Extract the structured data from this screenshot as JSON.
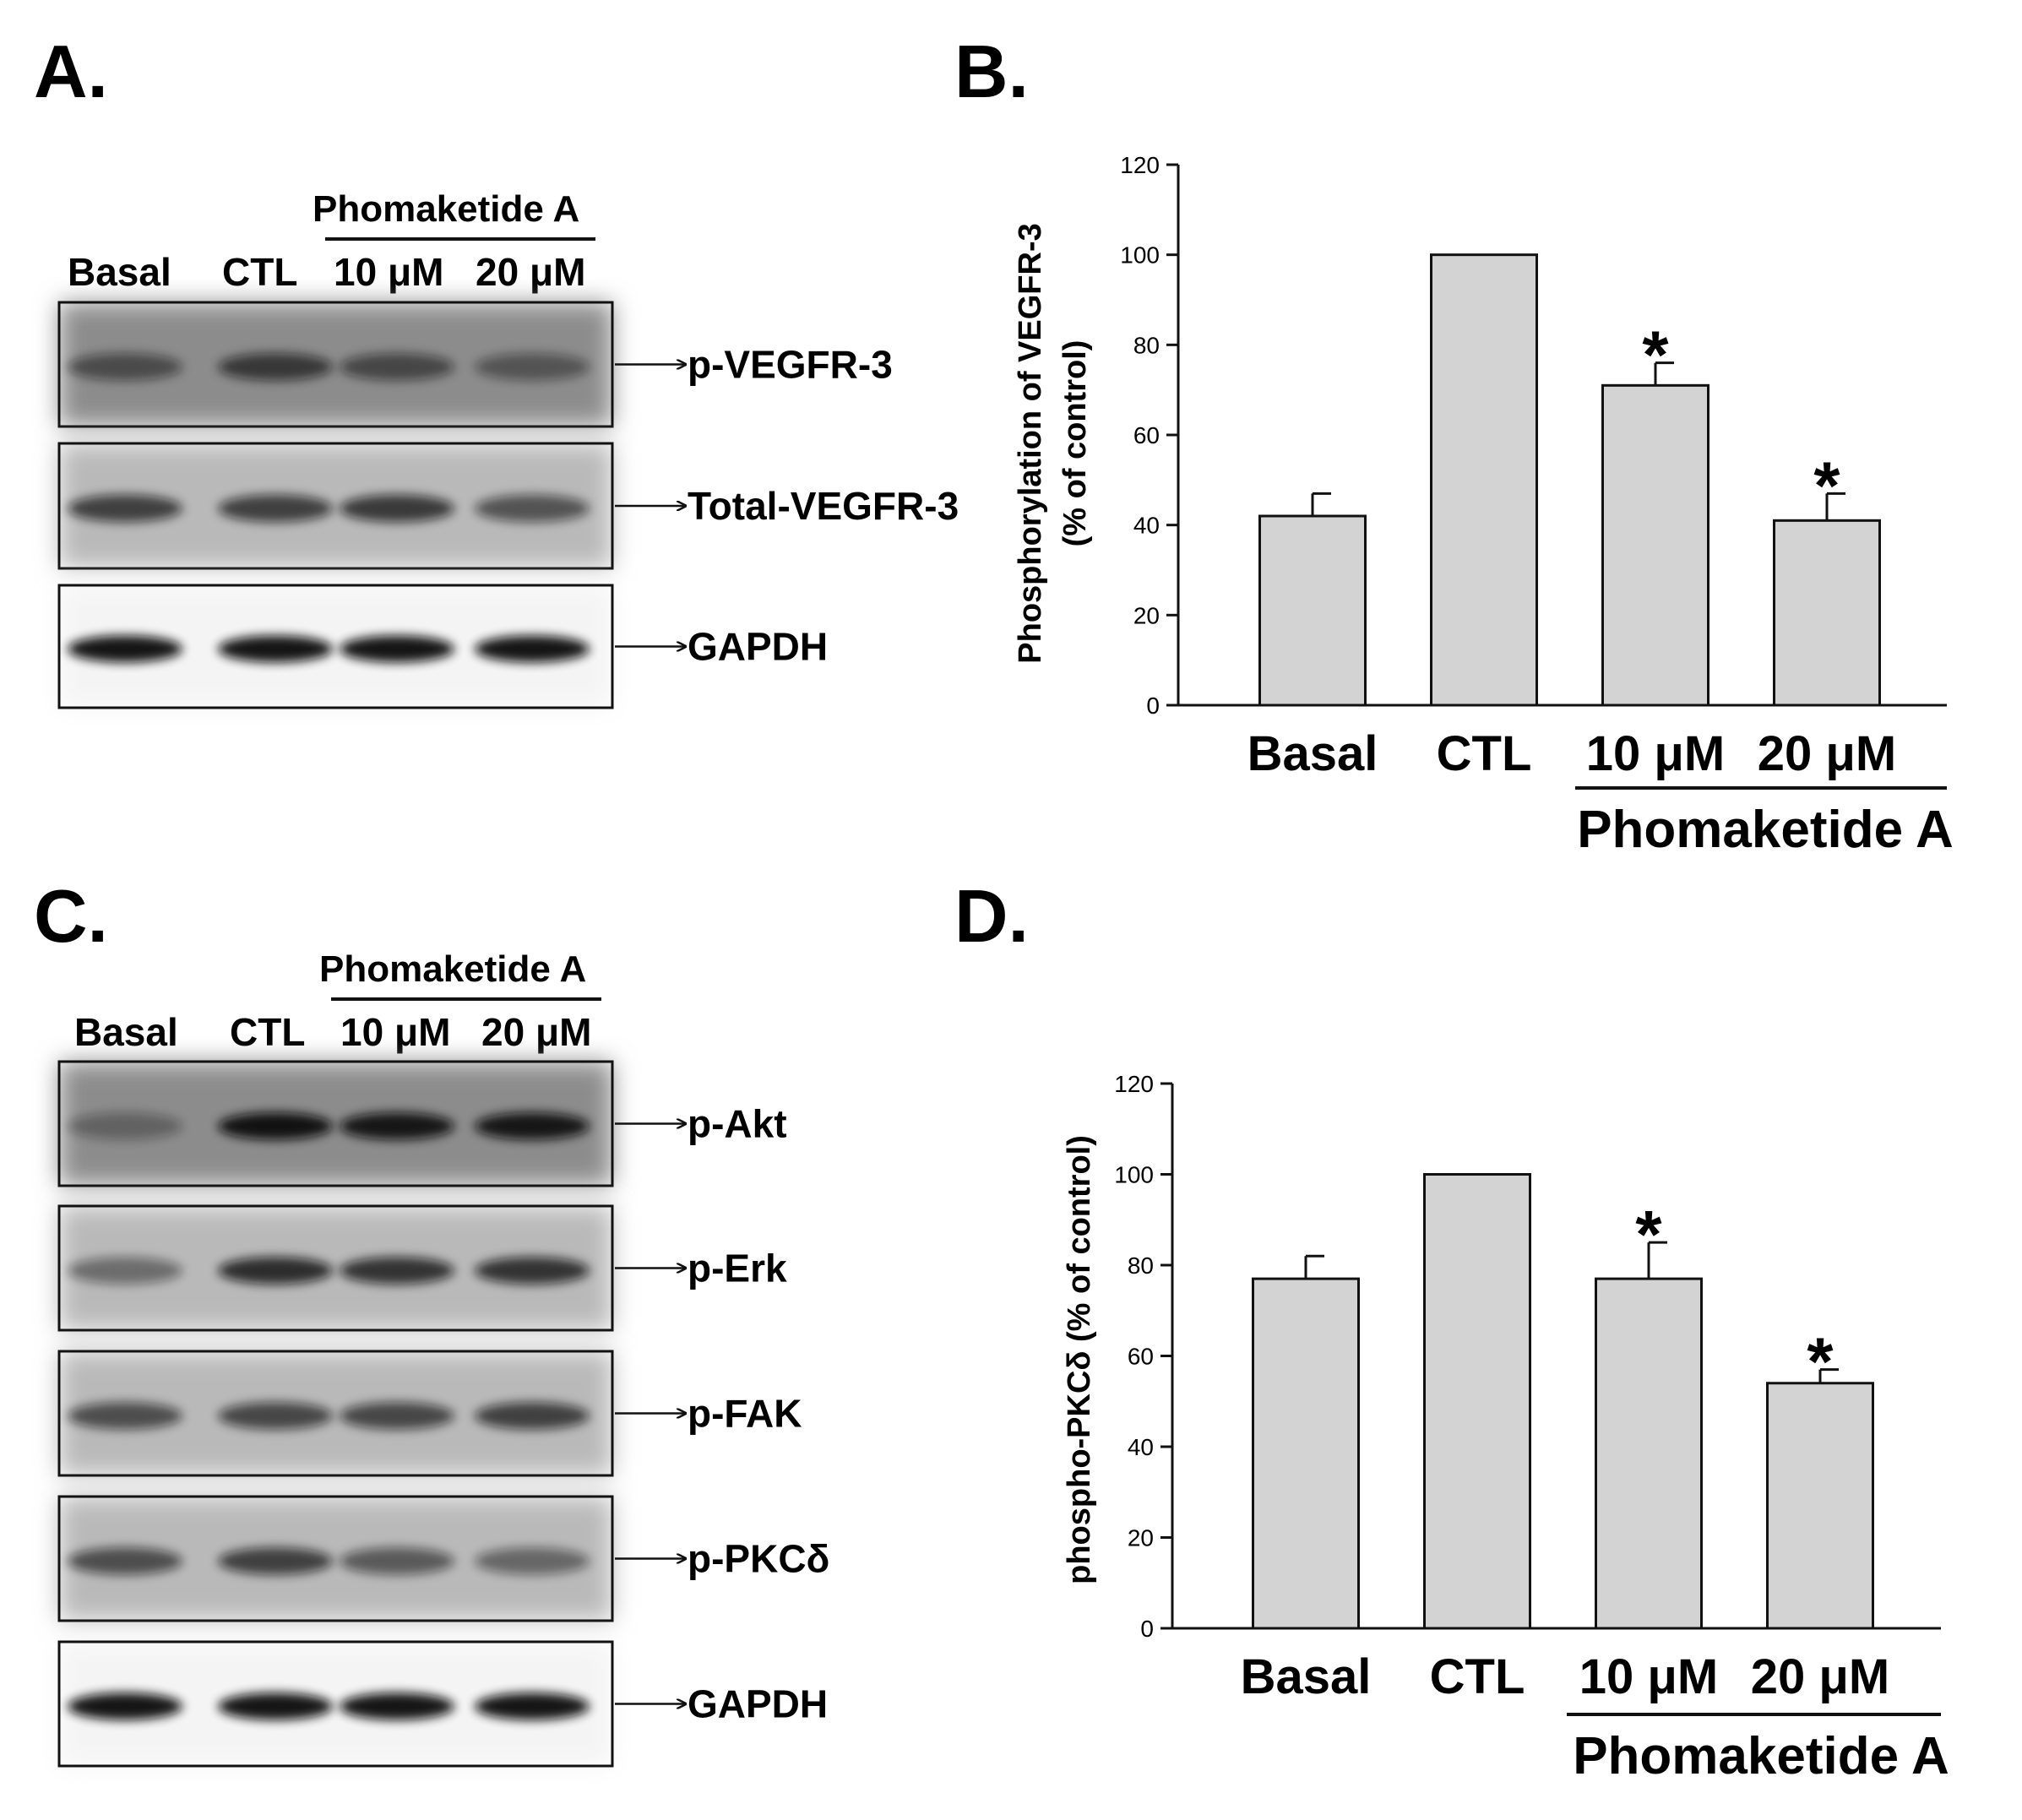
{
  "panels": {
    "a": {
      "letter": "A.",
      "group_label": "Phomaketide A",
      "lanes": [
        "Basal",
        "CTL",
        "10 μM",
        "20 μM"
      ],
      "blots": [
        {
          "label": "p-VEGFR-3",
          "intensity": [
            0.35,
            0.55,
            0.4,
            0.25
          ]
        },
        {
          "label": "Total-VEGFR-3",
          "intensity": [
            0.6,
            0.6,
            0.65,
            0.45
          ]
        },
        {
          "label": "GAPDH",
          "intensity": [
            0.95,
            0.95,
            0.95,
            0.95
          ]
        }
      ]
    },
    "b": {
      "letter": "B."
    },
    "c": {
      "letter": "C.",
      "group_label": "Phomaketide A",
      "lanes": [
        "Basal",
        "CTL",
        "10 μM",
        "20 μM"
      ],
      "blots": [
        {
          "label": "p-Akt",
          "intensity": [
            0.1,
            0.95,
            0.9,
            0.9
          ]
        },
        {
          "label": "p-Erk",
          "intensity": [
            0.25,
            0.75,
            0.7,
            0.7
          ]
        },
        {
          "label": "p-FAK",
          "intensity": [
            0.5,
            0.55,
            0.55,
            0.6
          ]
        },
        {
          "label": "p-PKCδ",
          "intensity": [
            0.5,
            0.6,
            0.4,
            0.3
          ]
        },
        {
          "label": "GAPDH",
          "intensity": [
            0.95,
            0.95,
            0.95,
            0.95
          ]
        }
      ]
    },
    "d": {
      "letter": "D."
    }
  },
  "chart_data": [
    {
      "type": "bar",
      "panel": "B",
      "categories": [
        "Basal",
        "CTL",
        "10 μM",
        "20 μM"
      ],
      "values": [
        42,
        100,
        71,
        41
      ],
      "errors": [
        5,
        0,
        5,
        6
      ],
      "significance": [
        "",
        "",
        "*",
        "*"
      ],
      "ylabel_line1": "Phosphorylation of VEGFR-3",
      "ylabel_line2": "(% of control)",
      "group_label": "Phomaketide A",
      "ylim": [
        0,
        120
      ],
      "yticks": [
        0,
        20,
        40,
        60,
        80,
        100,
        120
      ],
      "bar_color": "#d3d3d3"
    },
    {
      "type": "bar",
      "panel": "D",
      "categories": [
        "Basal",
        "CTL",
        "10 μM",
        "20 μM"
      ],
      "values": [
        77,
        100,
        77,
        54
      ],
      "errors": [
        5,
        0,
        8,
        3
      ],
      "significance": [
        "",
        "",
        "*",
        "*"
      ],
      "ylabel": "phospho-PKCδ (% of control)",
      "group_label": "Phomaketide A",
      "ylim": [
        0,
        120
      ],
      "yticks": [
        0,
        20,
        40,
        60,
        80,
        100,
        120
      ],
      "bar_color": "#d3d3d3"
    }
  ]
}
